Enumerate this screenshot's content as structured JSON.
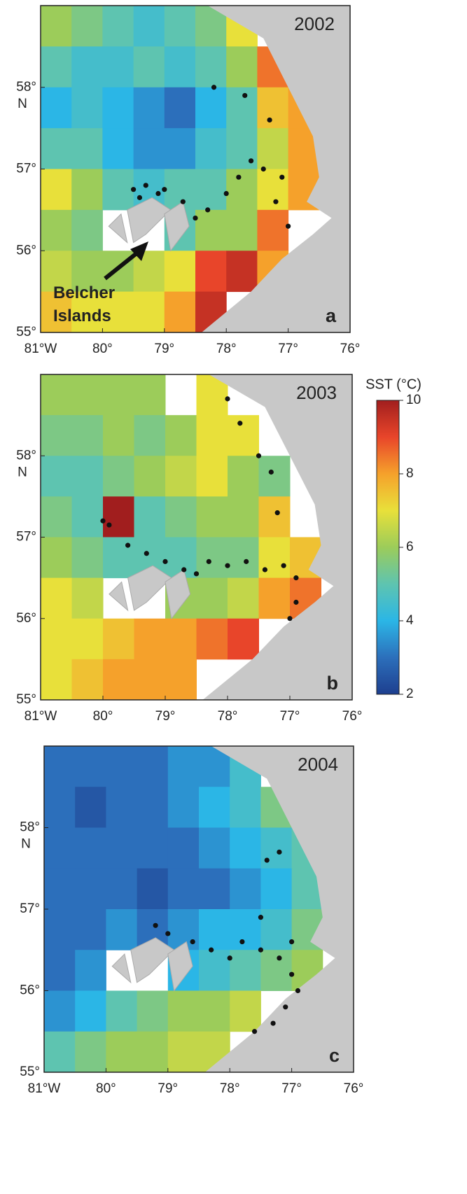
{
  "chart_data": [
    {
      "type": "sst-map",
      "title": "2002",
      "panel_label": "a",
      "annotation": "Belcher Islands",
      "y_unit": "N",
      "xlim": [
        -81,
        -76
      ],
      "ylim": [
        55,
        59
      ],
      "xticks": [
        {
          "value": -81,
          "label": "81°W"
        },
        {
          "value": -80,
          "label": "80°"
        },
        {
          "value": -79,
          "label": "79°"
        },
        {
          "value": -78,
          "label": "78°"
        },
        {
          "value": -77,
          "label": "77°"
        },
        {
          "value": -76,
          "label": "76°"
        }
      ],
      "yticks": [
        {
          "value": 55,
          "label": "55°"
        },
        {
          "value": 56,
          "label": "56°"
        },
        {
          "value": 57,
          "label": "57°"
        },
        {
          "value": 58,
          "label": "58°"
        }
      ],
      "sst": {
        "lon": [
          -80.75,
          -80.25,
          -79.75,
          -79.25,
          -78.75,
          -78.25,
          -77.75,
          -77.25,
          -76.75,
          -76.25
        ],
        "lat": [
          58.75,
          58.25,
          57.75,
          57.25,
          56.75,
          56.25,
          55.75,
          55.25
        ],
        "values": [
          [
            6,
            5.5,
            5,
            4.5,
            5,
            5.5,
            7,
            null,
            null,
            null
          ],
          [
            5,
            4.5,
            4.5,
            5,
            4.5,
            5,
            6,
            8.5,
            null,
            null
          ],
          [
            4,
            4.5,
            4,
            3.5,
            3,
            4,
            5,
            7.5,
            8,
            null
          ],
          [
            5,
            5,
            4,
            3.5,
            3.5,
            4.5,
            5,
            6.5,
            8,
            null
          ],
          [
            7,
            6,
            5,
            4.5,
            5,
            5,
            6,
            7,
            8,
            null
          ],
          [
            6,
            5.5,
            null,
            null,
            5,
            6,
            6,
            8.5,
            null,
            null
          ],
          [
            6.5,
            6,
            6,
            6.5,
            7,
            9,
            9.5,
            8,
            null,
            null
          ],
          [
            7.5,
            7,
            7,
            7,
            8,
            9.5,
            null,
            null,
            null,
            null
          ]
        ]
      },
      "points": {
        "x": [
          -79.5,
          -79.3,
          -79.1,
          -79.4,
          -79.0,
          -78.7,
          -78.5,
          -78.3,
          -78.0,
          -77.8,
          -77.6,
          -77.4,
          -77.2,
          -77.0,
          -77.3,
          -77.7,
          -78.2,
          -77.1
        ],
        "y": [
          56.75,
          56.8,
          56.7,
          56.65,
          56.75,
          56.6,
          56.4,
          56.5,
          56.7,
          56.9,
          57.1,
          57.0,
          56.6,
          56.3,
          57.6,
          57.9,
          58.0,
          56.9
        ]
      }
    },
    {
      "type": "sst-map",
      "title": "2003",
      "panel_label": "b",
      "y_unit": "N",
      "xlim": [
        -81,
        -76
      ],
      "ylim": [
        55,
        59
      ],
      "xticks": [
        {
          "value": -81,
          "label": "81°W"
        },
        {
          "value": -80,
          "label": "80°"
        },
        {
          "value": -79,
          "label": "79°"
        },
        {
          "value": -78,
          "label": "78°"
        },
        {
          "value": -77,
          "label": "77°"
        },
        {
          "value": -76,
          "label": "76°"
        }
      ],
      "yticks": [
        {
          "value": 55,
          "label": "55°"
        },
        {
          "value": 56,
          "label": "56°"
        },
        {
          "value": 57,
          "label": "57°"
        },
        {
          "value": 58,
          "label": "58°"
        }
      ],
      "sst": {
        "lon": [
          -80.75,
          -80.25,
          -79.75,
          -79.25,
          -78.75,
          -78.25,
          -77.75,
          -77.25,
          -76.75,
          -76.25
        ],
        "lat": [
          58.75,
          58.25,
          57.75,
          57.25,
          56.75,
          56.25,
          55.75,
          55.25
        ],
        "values": [
          [
            6,
            6,
            6,
            6,
            null,
            7,
            null,
            null,
            null,
            null
          ],
          [
            5.5,
            5.5,
            6,
            5.5,
            6,
            7,
            7,
            null,
            null,
            null
          ],
          [
            5,
            5,
            5.5,
            6,
            6.5,
            7,
            6,
            5.5,
            null,
            null
          ],
          [
            5.5,
            5,
            10,
            5,
            5.5,
            6,
            6,
            7.5,
            null,
            null
          ],
          [
            6,
            5.5,
            5,
            5,
            5,
            5.5,
            5.5,
            7,
            7.5,
            null
          ],
          [
            7,
            6.5,
            null,
            null,
            6,
            6,
            6.5,
            8,
            8.5,
            null
          ],
          [
            7,
            7,
            7.5,
            8,
            8,
            8.5,
            9,
            null,
            null,
            null
          ],
          [
            7,
            7.5,
            8,
            8,
            8,
            null,
            null,
            null,
            null,
            null
          ]
        ]
      },
      "points": {
        "x": [
          -80.0,
          -79.9,
          -79.6,
          -79.3,
          -79.0,
          -78.7,
          -78.5,
          -78.3,
          -78.0,
          -77.7,
          -77.4,
          -77.1,
          -76.9,
          -77.0,
          -76.9,
          -77.2,
          -77.5,
          -77.8,
          -78.0,
          -77.3
        ],
        "y": [
          57.2,
          57.15,
          56.9,
          56.8,
          56.7,
          56.6,
          56.55,
          56.7,
          56.65,
          56.7,
          56.6,
          56.65,
          56.5,
          56.0,
          56.2,
          57.3,
          58.0,
          58.4,
          58.7,
          57.8
        ]
      }
    },
    {
      "type": "sst-map",
      "title": "2004",
      "panel_label": "c",
      "y_unit": "N",
      "xlim": [
        -81,
        -76
      ],
      "ylim": [
        55,
        59
      ],
      "xticks": [
        {
          "value": -81,
          "label": "81°W"
        },
        {
          "value": -80,
          "label": "80°"
        },
        {
          "value": -79,
          "label": "79°"
        },
        {
          "value": -78,
          "label": "78°"
        },
        {
          "value": -77,
          "label": "77°"
        },
        {
          "value": -76,
          "label": "76°"
        }
      ],
      "yticks": [
        {
          "value": 55,
          "label": "55°"
        },
        {
          "value": 56,
          "label": "56°"
        },
        {
          "value": 57,
          "label": "57°"
        },
        {
          "value": 58,
          "label": "58°"
        }
      ],
      "sst": {
        "lon": [
          -80.75,
          -80.25,
          -79.75,
          -79.25,
          -78.75,
          -78.25,
          -77.75,
          -77.25,
          -76.75,
          -76.25
        ],
        "lat": [
          58.75,
          58.25,
          57.75,
          57.25,
          56.75,
          56.25,
          55.75,
          55.25
        ],
        "values": [
          [
            3,
            3,
            3,
            3,
            3.5,
            3.5,
            4.5,
            null,
            null,
            null
          ],
          [
            3,
            2.5,
            3,
            3,
            3.5,
            4,
            4.5,
            5.5,
            null,
            null
          ],
          [
            3,
            3,
            3,
            3,
            3,
            3.5,
            4,
            4.5,
            5,
            null
          ],
          [
            3,
            3,
            3,
            2.5,
            3,
            3,
            3.5,
            4,
            5,
            null
          ],
          [
            3,
            3,
            3.5,
            3,
            3.5,
            4,
            4,
            4.5,
            5.5,
            null
          ],
          [
            3,
            3.5,
            null,
            null,
            4,
            4.5,
            5,
            5.5,
            6,
            null
          ],
          [
            3.5,
            4,
            5,
            5.5,
            6,
            6,
            6.5,
            null,
            null,
            null
          ],
          [
            5,
            5.5,
            6,
            6,
            6.5,
            6.5,
            null,
            null,
            null,
            null
          ]
        ]
      },
      "points": {
        "x": [
          -79.2,
          -79.0,
          -78.6,
          -78.3,
          -78.0,
          -77.8,
          -77.5,
          -77.2,
          -77.0,
          -76.9,
          -77.1,
          -77.3,
          -77.6,
          -77.4,
          -77.2,
          -77.5,
          -77.0
        ],
        "y": [
          56.8,
          56.7,
          56.6,
          56.5,
          56.4,
          56.6,
          56.5,
          56.4,
          56.2,
          56.0,
          55.8,
          55.6,
          55.5,
          57.6,
          57.7,
          56.9,
          56.6
        ]
      }
    }
  ],
  "colorbar": {
    "label": "SST (°C)",
    "lim": [
      2,
      10
    ],
    "ticks": [
      2,
      4,
      6,
      8,
      10
    ]
  }
}
